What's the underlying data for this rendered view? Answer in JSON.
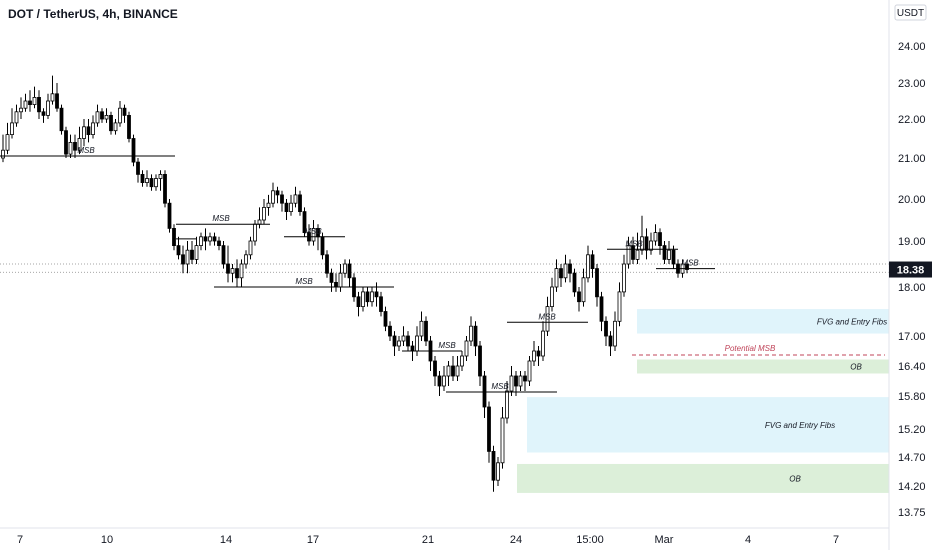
{
  "chart_data": {
    "type": "candlestick",
    "title": "DOT / TetherUS, 4h, BINANCE",
    "currency_label": "USDT",
    "last_price": "18.38",
    "y_ticks": [
      "24.00",
      "23.00",
      "22.00",
      "21.00",
      "20.00",
      "19.00",
      "18.00",
      "17.00",
      "16.40",
      "15.80",
      "15.20",
      "14.70",
      "14.20",
      "13.75"
    ],
    "x_ticks": [
      "7",
      "10",
      "14",
      "17",
      "21",
      "24",
      "15:00",
      "Mar",
      "4",
      "7"
    ],
    "colors": {
      "up_candle": "#ffffff",
      "down_candle": "#000000",
      "outline": "#000000",
      "fvg_zone": "#e0f4fb",
      "ob_zone": "#dcefd9",
      "potential_line": "#c0455a",
      "last_price_bg": "#131722",
      "price_line": "#888888"
    },
    "annotations": {
      "msb": "MSB",
      "fvg_upper": "FVG and Entry Fibs",
      "fvg_lower": "FVG and Entry Fibs",
      "ob_upper": "OB",
      "ob_lower": "OB",
      "potential_msb": "Potential MSB"
    },
    "candles": [
      [
        21.0,
        21.2,
        21.6,
        20.9
      ],
      [
        21.2,
        21.6,
        21.9,
        21.1
      ],
      [
        21.6,
        21.9,
        22.3,
        21.5
      ],
      [
        21.9,
        22.2,
        22.4,
        21.8
      ],
      [
        22.2,
        22.3,
        22.6,
        22.0
      ],
      [
        22.3,
        22.5,
        22.7,
        22.2
      ],
      [
        22.5,
        22.4,
        22.8,
        22.2
      ],
      [
        22.4,
        22.6,
        22.9,
        22.3
      ],
      [
        22.6,
        22.2,
        22.8,
        22.0
      ],
      [
        22.2,
        22.1,
        22.3,
        21.9
      ],
      [
        22.1,
        22.5,
        22.7,
        22.0
      ],
      [
        22.5,
        22.7,
        23.2,
        22.4
      ],
      [
        22.7,
        22.3,
        23.0,
        22.2
      ],
      [
        22.3,
        21.7,
        22.4,
        21.6
      ],
      [
        21.7,
        21.1,
        21.8,
        21.0
      ],
      [
        21.1,
        21.4,
        21.6,
        21.0
      ],
      [
        21.4,
        21.2,
        21.6,
        21.0
      ],
      [
        21.2,
        21.5,
        21.8,
        21.1
      ],
      [
        21.5,
        21.8,
        22.0,
        21.3
      ],
      [
        21.8,
        21.6,
        22.0,
        21.4
      ],
      [
        21.6,
        21.9,
        22.1,
        21.5
      ],
      [
        21.9,
        22.2,
        22.4,
        21.8
      ],
      [
        22.2,
        22.0,
        22.3,
        21.9
      ],
      [
        22.0,
        22.1,
        22.3,
        21.9
      ],
      [
        22.1,
        21.7,
        22.2,
        21.6
      ],
      [
        21.7,
        21.9,
        22.0,
        21.6
      ],
      [
        21.9,
        22.3,
        22.5,
        21.8
      ],
      [
        22.3,
        22.1,
        22.4,
        21.9
      ],
      [
        22.1,
        21.5,
        22.2,
        21.4
      ],
      [
        21.5,
        20.9,
        21.6,
        20.8
      ],
      [
        20.9,
        20.6,
        21.0,
        20.4
      ],
      [
        20.6,
        20.4,
        20.7,
        20.3
      ],
      [
        20.4,
        20.5,
        20.7,
        20.3
      ],
      [
        20.5,
        20.3,
        20.6,
        20.2
      ],
      [
        20.3,
        20.5,
        20.6,
        20.2
      ],
      [
        20.5,
        20.6,
        20.7,
        20.2
      ],
      [
        20.6,
        19.9,
        20.7,
        19.8
      ],
      [
        19.9,
        19.3,
        20.0,
        19.2
      ],
      [
        19.3,
        18.9,
        19.4,
        18.8
      ],
      [
        18.9,
        18.7,
        19.1,
        18.6
      ],
      [
        18.7,
        18.5,
        18.9,
        18.3
      ],
      [
        18.5,
        18.8,
        19.0,
        18.3
      ],
      [
        18.8,
        18.6,
        19.0,
        18.5
      ],
      [
        18.6,
        18.9,
        19.1,
        18.5
      ],
      [
        18.9,
        19.1,
        19.2,
        18.8
      ],
      [
        19.1,
        19.0,
        19.3,
        18.8
      ],
      [
        19.0,
        19.1,
        19.2,
        18.9
      ],
      [
        19.1,
        19.0,
        19.2,
        18.9
      ],
      [
        19.0,
        18.9,
        19.1,
        18.8
      ],
      [
        18.9,
        18.5,
        19.0,
        18.4
      ],
      [
        18.5,
        18.3,
        18.9,
        18.1
      ],
      [
        18.3,
        18.4,
        18.5,
        18.1
      ],
      [
        18.4,
        18.2,
        18.6,
        18.0
      ],
      [
        18.2,
        18.5,
        18.6,
        18.0
      ],
      [
        18.5,
        18.7,
        18.8,
        18.4
      ],
      [
        18.7,
        19.0,
        19.1,
        18.6
      ],
      [
        19.0,
        19.4,
        19.5,
        18.9
      ],
      [
        19.4,
        19.5,
        19.8,
        19.3
      ],
      [
        19.5,
        19.8,
        20.0,
        19.4
      ],
      [
        19.8,
        19.9,
        20.1,
        19.6
      ],
      [
        19.9,
        20.2,
        20.4,
        19.8
      ],
      [
        20.2,
        20.1,
        20.3,
        19.9
      ],
      [
        20.1,
        19.9,
        20.2,
        19.7
      ],
      [
        19.9,
        19.7,
        20.0,
        19.5
      ],
      [
        19.7,
        19.9,
        20.1,
        19.6
      ],
      [
        19.9,
        20.1,
        20.3,
        19.8
      ],
      [
        20.1,
        19.7,
        20.2,
        19.6
      ],
      [
        19.7,
        19.2,
        19.8,
        19.1
      ],
      [
        19.2,
        19.0,
        19.4,
        18.9
      ],
      [
        19.0,
        19.3,
        19.5,
        18.9
      ],
      [
        19.3,
        19.1,
        19.4,
        18.8
      ],
      [
        19.1,
        18.7,
        19.2,
        18.6
      ],
      [
        18.7,
        18.3,
        18.8,
        18.2
      ],
      [
        18.3,
        18.1,
        18.4,
        17.9
      ],
      [
        18.1,
        18.0,
        18.3,
        17.9
      ],
      [
        18.0,
        18.3,
        18.5,
        17.9
      ],
      [
        18.3,
        18.5,
        18.6,
        18.2
      ],
      [
        18.5,
        18.2,
        18.6,
        18.0
      ],
      [
        18.2,
        17.8,
        18.3,
        17.7
      ],
      [
        17.8,
        17.6,
        17.9,
        17.4
      ],
      [
        17.6,
        17.9,
        18.0,
        17.5
      ],
      [
        17.9,
        17.7,
        18.0,
        17.6
      ],
      [
        17.7,
        17.9,
        18.0,
        17.6
      ],
      [
        17.9,
        17.8,
        18.1,
        17.6
      ],
      [
        17.8,
        17.5,
        17.9,
        17.4
      ],
      [
        17.5,
        17.2,
        17.6,
        17.1
      ],
      [
        17.2,
        17.0,
        17.3,
        16.9
      ],
      [
        17.0,
        16.8,
        17.1,
        16.6
      ],
      [
        16.8,
        16.9,
        17.0,
        16.7
      ],
      [
        16.9,
        17.0,
        17.2,
        16.8
      ],
      [
        17.0,
        16.8,
        17.1,
        16.7
      ],
      [
        16.8,
        16.7,
        16.9,
        16.5
      ],
      [
        16.7,
        17.0,
        17.2,
        16.6
      ],
      [
        17.0,
        17.3,
        17.5,
        16.9
      ],
      [
        17.3,
        16.9,
        17.4,
        16.8
      ],
      [
        16.9,
        16.5,
        17.0,
        16.3
      ],
      [
        16.5,
        16.2,
        16.6,
        16.0
      ],
      [
        16.2,
        16.0,
        16.3,
        15.8
      ],
      [
        16.0,
        16.2,
        16.4,
        15.9
      ],
      [
        16.2,
        16.4,
        16.5,
        16.0
      ],
      [
        16.4,
        16.2,
        16.6,
        16.1
      ],
      [
        16.2,
        16.4,
        16.6,
        16.1
      ],
      [
        16.4,
        16.6,
        16.7,
        16.3
      ],
      [
        16.6,
        16.9,
        17.0,
        16.5
      ],
      [
        16.9,
        17.2,
        17.4,
        16.8
      ],
      [
        17.2,
        16.8,
        17.3,
        16.6
      ],
      [
        16.8,
        16.2,
        16.9,
        16.0
      ],
      [
        16.2,
        15.6,
        16.3,
        15.4
      ],
      [
        15.6,
        14.8,
        15.7,
        14.6
      ],
      [
        14.8,
        14.3,
        14.9,
        14.1
      ],
      [
        14.3,
        14.6,
        14.7,
        14.2
      ],
      [
        14.6,
        15.4,
        15.6,
        14.5
      ],
      [
        15.4,
        15.9,
        16.1,
        15.3
      ],
      [
        15.9,
        16.2,
        16.4,
        15.8
      ],
      [
        16.2,
        16.0,
        16.3,
        15.8
      ],
      [
        16.0,
        16.2,
        16.3,
        15.9
      ],
      [
        16.2,
        16.1,
        16.3,
        15.9
      ],
      [
        16.1,
        16.5,
        16.6,
        16.0
      ],
      [
        16.5,
        16.7,
        16.9,
        16.4
      ],
      [
        16.7,
        16.6,
        16.8,
        16.4
      ],
      [
        16.6,
        17.1,
        17.3,
        16.5
      ],
      [
        17.1,
        17.6,
        17.8,
        17.0
      ],
      [
        17.6,
        18.0,
        18.2,
        17.5
      ],
      [
        18.0,
        18.4,
        18.6,
        17.9
      ],
      [
        18.4,
        18.2,
        18.5,
        18.0
      ],
      [
        18.2,
        18.5,
        18.7,
        18.1
      ],
      [
        18.5,
        18.3,
        18.6,
        18.1
      ],
      [
        18.3,
        17.9,
        18.4,
        17.8
      ],
      [
        17.9,
        17.7,
        18.0,
        17.5
      ],
      [
        17.7,
        18.2,
        18.4,
        17.6
      ],
      [
        18.2,
        18.7,
        18.9,
        18.1
      ],
      [
        18.7,
        18.4,
        18.8,
        18.2
      ],
      [
        18.4,
        17.8,
        18.5,
        17.6
      ],
      [
        17.8,
        17.3,
        17.9,
        17.1
      ],
      [
        17.3,
        17.0,
        17.4,
        16.8
      ],
      [
        17.0,
        16.8,
        17.1,
        16.6
      ],
      [
        16.8,
        17.3,
        17.5,
        16.7
      ],
      [
        17.3,
        17.9,
        18.1,
        17.2
      ],
      [
        17.9,
        18.5,
        18.7,
        17.8
      ],
      [
        18.5,
        18.9,
        19.1,
        18.4
      ],
      [
        18.9,
        18.6,
        19.1,
        18.5
      ],
      [
        18.6,
        18.8,
        19.2,
        18.5
      ],
      [
        18.8,
        19.1,
        19.6,
        18.7
      ],
      [
        19.1,
        18.8,
        19.3,
        18.6
      ],
      [
        18.8,
        19.0,
        19.2,
        18.7
      ],
      [
        19.0,
        19.2,
        19.4,
        18.9
      ],
      [
        19.2,
        18.9,
        19.3,
        18.7
      ],
      [
        18.9,
        18.6,
        19.0,
        18.5
      ],
      [
        18.6,
        18.8,
        19.0,
        18.5
      ],
      [
        18.8,
        18.5,
        18.9,
        18.4
      ],
      [
        18.5,
        18.3,
        18.6,
        18.2
      ],
      [
        18.3,
        18.5,
        18.6,
        18.2
      ],
      [
        18.5,
        18.38,
        18.55,
        18.3
      ]
    ]
  }
}
